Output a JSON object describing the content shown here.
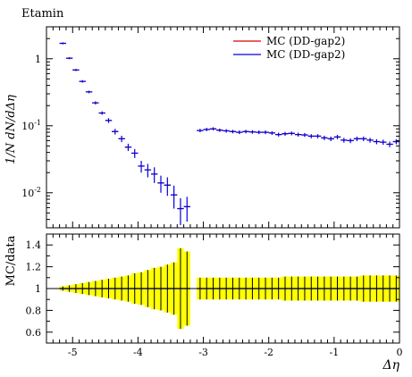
{
  "title": "Etamin",
  "upper_ylabel": "1/N dN/dΔη",
  "lower_ylabel": "MC/data",
  "xlabel": "Δη",
  "colors": {
    "mc1": "#dd0000",
    "mc2": "#0000dd",
    "band": "#ffff00",
    "frame": "#000000"
  },
  "chart_data": [
    {
      "type": "line",
      "panel": "main",
      "log_y": true,
      "xlim": [
        -5.4,
        0
      ],
      "ylim": [
        0.003,
        3
      ],
      "x_ticks": [
        "-5",
        "-4",
        "-3",
        "-2",
        "-1",
        "0"
      ],
      "y_ticks": [
        "10^-2",
        "10^-1",
        "1"
      ],
      "legend_position": "top-right",
      "series": [
        {
          "name": "MC (DD-gap2)",
          "color": "#dd0000",
          "x": [
            -5.15,
            -5.05,
            -4.95,
            -4.85,
            -4.75,
            -4.65,
            -4.55,
            -4.45,
            -4.35,
            -4.25,
            -4.15,
            -4.05,
            -3.95,
            -3.85,
            -3.75,
            -3.65,
            -3.55,
            -3.45,
            -3.35,
            -3.25,
            -3.05,
            -2.95,
            -2.85,
            -2.75,
            -2.65,
            -2.55,
            -2.45,
            -2.35,
            -2.25,
            -2.15,
            -2.05,
            -1.95,
            -1.85,
            -1.75,
            -1.65,
            -1.55,
            -1.45,
            -1.35,
            -1.25,
            -1.15,
            -1.05,
            -0.95,
            -0.85,
            -0.75,
            -0.65,
            -0.55,
            -0.45,
            -0.35,
            -0.25,
            -0.15,
            -0.05
          ],
          "y": [
            1.7,
            1.02,
            0.68,
            0.46,
            0.32,
            0.22,
            0.155,
            0.12,
            0.082,
            0.064,
            0.048,
            0.039,
            0.025,
            0.022,
            0.019,
            0.014,
            0.013,
            0.0093,
            0.0058,
            0.0062,
            0.085,
            0.088,
            0.09,
            0.086,
            0.084,
            0.082,
            0.08,
            0.082,
            0.081,
            0.08,
            0.08,
            0.078,
            0.074,
            0.076,
            0.077,
            0.074,
            0.073,
            0.07,
            0.07,
            0.066,
            0.064,
            0.068,
            0.061,
            0.06,
            0.064,
            0.064,
            0.061,
            0.058,
            0.057,
            0.053,
            0.058
          ]
        },
        {
          "name": "MC (DD-gap2)",
          "color": "#0000dd",
          "x": [
            -5.15,
            -5.05,
            -4.95,
            -4.85,
            -4.75,
            -4.65,
            -4.55,
            -4.45,
            -4.35,
            -4.25,
            -4.15,
            -4.05,
            -3.95,
            -3.85,
            -3.75,
            -3.65,
            -3.55,
            -3.45,
            -3.35,
            -3.25,
            -3.05,
            -2.95,
            -2.85,
            -2.75,
            -2.65,
            -2.55,
            -2.45,
            -2.35,
            -2.25,
            -2.15,
            -2.05,
            -1.95,
            -1.85,
            -1.75,
            -1.65,
            -1.55,
            -1.45,
            -1.35,
            -1.25,
            -1.15,
            -1.05,
            -0.95,
            -0.85,
            -0.75,
            -0.65,
            -0.55,
            -0.45,
            -0.35,
            -0.25,
            -0.15,
            -0.05
          ],
          "y": [
            1.7,
            1.02,
            0.68,
            0.46,
            0.32,
            0.22,
            0.155,
            0.12,
            0.082,
            0.064,
            0.048,
            0.039,
            0.025,
            0.022,
            0.019,
            0.014,
            0.013,
            0.0093,
            0.0058,
            0.0062,
            0.085,
            0.088,
            0.09,
            0.086,
            0.084,
            0.082,
            0.08,
            0.082,
            0.081,
            0.08,
            0.08,
            0.078,
            0.074,
            0.076,
            0.077,
            0.074,
            0.073,
            0.07,
            0.07,
            0.066,
            0.064,
            0.068,
            0.061,
            0.06,
            0.064,
            0.064,
            0.061,
            0.058,
            0.057,
            0.053,
            0.058
          ],
          "yerr": [
            0.06,
            0.035,
            0.025,
            0.02,
            0.014,
            0.012,
            0.009,
            0.01,
            0.008,
            0.007,
            0.006,
            0.006,
            0.005,
            0.005,
            0.005,
            0.004,
            0.004,
            0.0035,
            0.0025,
            0.0025,
            0.005,
            0.005,
            0.005,
            0.005,
            0.005,
            0.005,
            0.005,
            0.005,
            0.005,
            0.005,
            0.005,
            0.005,
            0.005,
            0.005,
            0.005,
            0.005,
            0.005,
            0.005,
            0.005,
            0.005,
            0.005,
            0.005,
            0.005,
            0.005,
            0.005,
            0.005,
            0.005,
            0.005,
            0.005,
            0.005,
            0.005
          ]
        }
      ]
    },
    {
      "type": "area",
      "panel": "ratio",
      "xlim": [
        -5.4,
        0
      ],
      "ylim": [
        0.5,
        1.5
      ],
      "x_ticks": [
        "-5",
        "-4",
        "-3",
        "-2",
        "-1",
        "0"
      ],
      "y_ticks": [
        "0.6",
        "0.8",
        "1",
        "1.2",
        "1.4"
      ],
      "x": [
        -5.15,
        -5.05,
        -4.95,
        -4.85,
        -4.75,
        -4.65,
        -4.55,
        -4.45,
        -4.35,
        -4.25,
        -4.15,
        -4.05,
        -3.95,
        -3.85,
        -3.75,
        -3.65,
        -3.55,
        -3.45,
        -3.35,
        -3.25,
        -3.05,
        -2.95,
        -2.85,
        -2.75,
        -2.65,
        -2.55,
        -2.45,
        -2.35,
        -2.25,
        -2.15,
        -2.05,
        -1.95,
        -1.85,
        -1.75,
        -1.65,
        -1.55,
        -1.45,
        -1.35,
        -1.25,
        -1.15,
        -1.05,
        -0.95,
        -0.85,
        -0.75,
        -0.65,
        -0.55,
        -0.45,
        -0.35,
        -0.25,
        -0.15,
        -0.05
      ],
      "ratio": [
        1,
        1,
        1,
        1,
        1,
        1,
        1,
        1,
        1,
        1,
        1,
        1,
        1,
        1,
        1,
        1,
        1,
        1,
        1,
        1,
        1,
        1,
        1,
        1,
        1,
        1,
        1,
        1,
        1,
        1,
        1,
        1,
        1,
        1,
        1,
        1,
        1,
        1,
        1,
        1,
        1,
        1,
        1,
        1,
        1,
        1,
        1,
        1,
        1,
        1,
        1
      ],
      "band_half_width": [
        0.02,
        0.03,
        0.04,
        0.05,
        0.06,
        0.07,
        0.08,
        0.09,
        0.1,
        0.11,
        0.12,
        0.14,
        0.15,
        0.17,
        0.19,
        0.2,
        0.22,
        0.24,
        0.37,
        0.34,
        0.1,
        0.1,
        0.1,
        0.1,
        0.1,
        0.1,
        0.1,
        0.1,
        0.1,
        0.1,
        0.1,
        0.1,
        0.1,
        0.11,
        0.11,
        0.11,
        0.11,
        0.11,
        0.11,
        0.11,
        0.11,
        0.11,
        0.11,
        0.11,
        0.11,
        0.12,
        0.12,
        0.12,
        0.12,
        0.12,
        0.12
      ]
    }
  ]
}
